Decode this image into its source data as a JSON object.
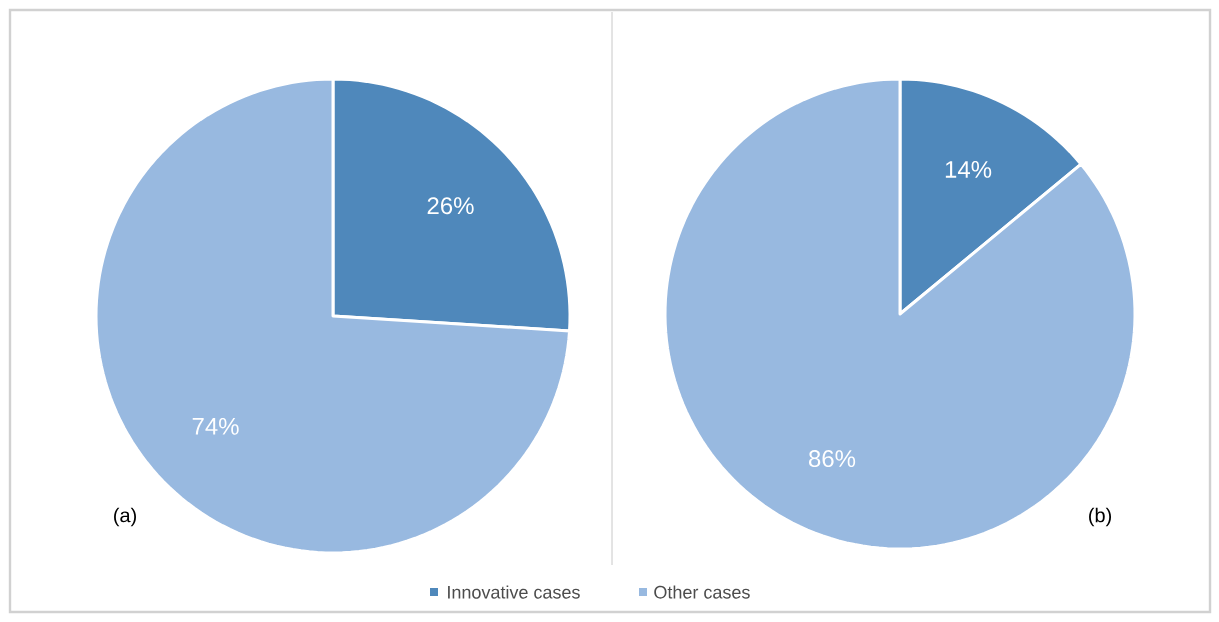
{
  "chart_data": [
    {
      "type": "pie",
      "categories": [
        "Innovative cases",
        "Other cases"
      ],
      "values": [
        26,
        74
      ],
      "colors": [
        "#4f88bb",
        "#98b9e0"
      ],
      "value_labels": [
        "26%",
        "74%"
      ],
      "annotations": [
        "(a)"
      ],
      "legend": "bottom"
    },
    {
      "type": "pie",
      "categories": [
        null,
        null
      ],
      "values": [
        14,
        86
      ],
      "colors": [
        "#4f88bb",
        "#98b9e0"
      ],
      "value_labels": [
        "14%",
        "86%"
      ],
      "annotations": [
        "(b)"
      ]
    }
  ]
}
